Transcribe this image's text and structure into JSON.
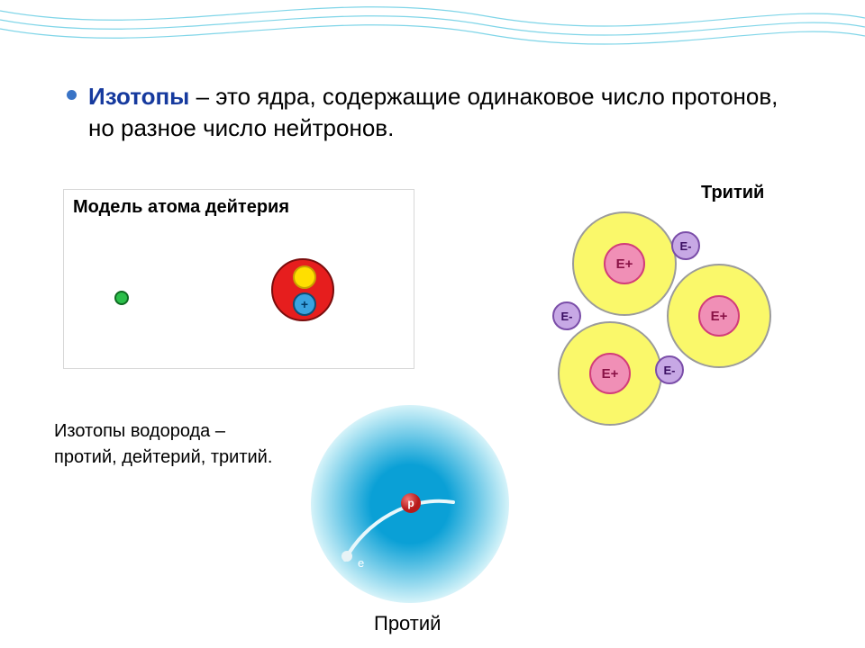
{
  "colors": {
    "wave_stroke": "#7fd5e8",
    "bullet_dot": "#3a74c6",
    "term_color": "#163a9e",
    "text_color": "#000000",
    "panel_border": "#d8d8d8",
    "deut_nucleus_fill": "#e61e1e",
    "deut_nucleus_stroke": "#7a0d0d",
    "deut_neutron_fill": "#ffdf00",
    "deut_neutron_stroke": "#c9a200",
    "deut_proton_fill": "#3aa3e0",
    "deut_proton_stroke": "#0b4f78",
    "deut_plus": "#003a66",
    "deut_electron_fill": "#2bbf4a",
    "deut_electron_stroke": "#0f6b22",
    "trit_big_fill": "#faf86a",
    "trit_big_stroke": "#9b9b9b",
    "trit_inner_fill": "#f08fb6",
    "trit_inner_stroke": "#d23d7a",
    "trit_inner_text": "#8a1246",
    "trit_small_fill": "#c7a8e5",
    "trit_small_stroke": "#7a4da8",
    "trit_small_text": "#3b0f63",
    "protium_glow_center": "#0aa0d6",
    "protium_glow_edge": "#c8eef7",
    "protium_core_fill": "#b71b1b",
    "protium_core_hl": "#f27474",
    "protium_e_fill": "#e8f3f6",
    "orbit_stroke": "#e8f7fb"
  },
  "text": {
    "term": "Изотопы",
    "definition_rest": " – это ядра, содержащие одинаковое число протонов, но разное число нейтронов.",
    "deuterium_title": "Модель атома дейтерия",
    "tritium_label": "Тритий",
    "isotope_list_l1": "Изотопы водорода –",
    "isotope_list_l2": "протий, дейтерий, тритий.",
    "protium_label": "Протий",
    "protium_p": "p",
    "protium_e": "e",
    "e_plus": "E+",
    "e_minus": "E-",
    "plus": "+"
  },
  "layout": {
    "bullet_fontsize": 26,
    "trit_big_d": 116,
    "trit_inner_d": 46,
    "trit_small_d": 32,
    "deut_nucleus_d": 70,
    "deut_np_d": 26,
    "deut_electron_d": 16,
    "protium_glow_d": 220,
    "protium_core_d": 22,
    "protium_e_d": 12
  }
}
